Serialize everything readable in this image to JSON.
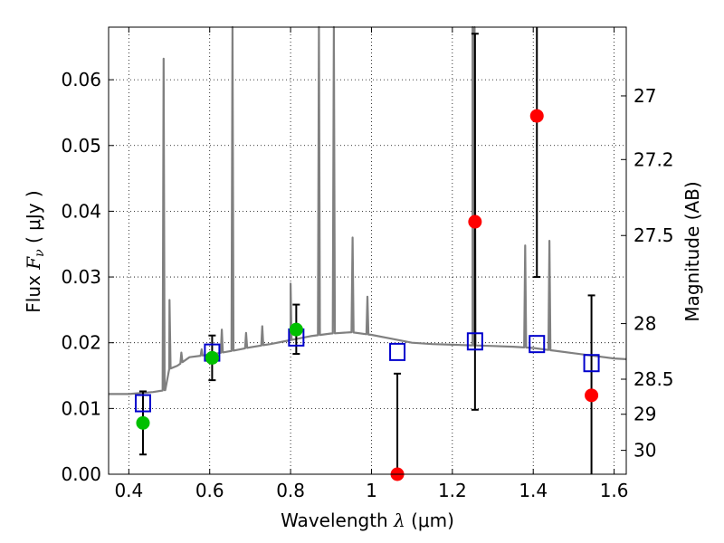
{
  "chart_data": {
    "type": "scatter",
    "title": "",
    "xlabel": {
      "prefix": "Wavelength  ",
      "symbol": "λ",
      "unit": " (μm)"
    },
    "ylabel": {
      "prefix": "Flux  ",
      "symbol": "F",
      "subscript": "ν",
      "unit": "  ( μJy )"
    },
    "y2label": "Magnitude (AB)",
    "xlim": [
      0.35,
      1.63
    ],
    "ylim": [
      0.0,
      0.068
    ],
    "grid": true,
    "grid_style": "dotted",
    "x_ticks": [
      0.4,
      0.6,
      0.8,
      1.0,
      1.2,
      1.4,
      1.6
    ],
    "x_tick_labels": [
      "0.4",
      "0.6",
      "0.8",
      "1",
      "1.2",
      "1.4",
      "1.6"
    ],
    "y_ticks": [
      0.0,
      0.01,
      0.02,
      0.03,
      0.04,
      0.05,
      0.06
    ],
    "y_tick_labels": [
      "0.00",
      "0.01",
      "0.02",
      "0.03",
      "0.04",
      "0.05",
      "0.06"
    ],
    "y2_ticks": [
      {
        "mag": 27.0,
        "label": "27"
      },
      {
        "mag": 27.2,
        "label": "27.2"
      },
      {
        "mag": 27.5,
        "label": "27.5"
      },
      {
        "mag": 28.0,
        "label": "28"
      },
      {
        "mag": 28.5,
        "label": "28.5"
      },
      {
        "mag": 29.0,
        "label": "29"
      },
      {
        "mag": 30.0,
        "label": "30"
      }
    ],
    "colors": {
      "spectrum": "#808080",
      "model_squares": "#0000cc",
      "detections": "#00c000",
      "nir_points": "#ff0000",
      "errorbars": "#000000"
    },
    "spectrum": {
      "continuum": [
        [
          0.35,
          0.0122
        ],
        [
          0.4,
          0.0122
        ],
        [
          0.46,
          0.0125
        ],
        [
          0.49,
          0.0128
        ],
        [
          0.5,
          0.016
        ],
        [
          0.52,
          0.0165
        ],
        [
          0.55,
          0.0178
        ],
        [
          0.6,
          0.0182
        ],
        [
          0.65,
          0.0187
        ],
        [
          0.7,
          0.0193
        ],
        [
          0.75,
          0.0198
        ],
        [
          0.8,
          0.0204
        ],
        [
          0.85,
          0.021
        ],
        [
          0.9,
          0.0214
        ],
        [
          0.95,
          0.0216
        ],
        [
          1.0,
          0.0212
        ],
        [
          1.05,
          0.0206
        ],
        [
          1.1,
          0.02
        ],
        [
          1.15,
          0.0198
        ],
        [
          1.2,
          0.0197
        ],
        [
          1.25,
          0.0196
        ],
        [
          1.3,
          0.0195
        ],
        [
          1.35,
          0.0194
        ],
        [
          1.4,
          0.0192
        ],
        [
          1.45,
          0.0188
        ],
        [
          1.5,
          0.0184
        ],
        [
          1.55,
          0.018
        ],
        [
          1.6,
          0.0176
        ],
        [
          1.63,
          0.0175
        ]
      ],
      "lines": [
        [
          0.4861,
          0.0632
        ],
        [
          0.5007,
          0.0265
        ],
        [
          0.53,
          0.0185
        ],
        [
          0.58,
          0.019
        ],
        [
          0.63,
          0.022
        ],
        [
          0.6563,
          0.072
        ],
        [
          0.69,
          0.0215
        ],
        [
          0.73,
          0.0225
        ],
        [
          0.8,
          0.029
        ],
        [
          0.87,
          0.072
        ],
        [
          0.9069,
          0.072
        ],
        [
          0.9532,
          0.036
        ],
        [
          0.99,
          0.027
        ],
        [
          1.25,
          0.072
        ],
        [
          1.255,
          0.072
        ],
        [
          1.38,
          0.0348
        ],
        [
          1.44,
          0.0355
        ]
      ]
    },
    "model_squares": [
      {
        "x": 0.435,
        "y": 0.0108
      },
      {
        "x": 0.606,
        "y": 0.0185
      },
      {
        "x": 0.814,
        "y": 0.0208
      },
      {
        "x": 1.064,
        "y": 0.0186
      },
      {
        "x": 1.256,
        "y": 0.0202
      },
      {
        "x": 1.409,
        "y": 0.0198
      },
      {
        "x": 1.544,
        "y": 0.0169
      }
    ],
    "detections": [
      {
        "x": 0.435,
        "y": 0.0078,
        "err_low": 0.003,
        "err_high": 0.0126
      },
      {
        "x": 0.606,
        "y": 0.0177,
        "err_low": 0.0143,
        "err_high": 0.0211
      },
      {
        "x": 0.814,
        "y": 0.022,
        "err_low": 0.0183,
        "err_high": 0.0258
      }
    ],
    "nir_points": [
      {
        "x": 1.064,
        "y": 0.0,
        "err_low": 0.0,
        "err_high": 0.0153
      },
      {
        "x": 1.256,
        "y": 0.0384,
        "err_low": 0.0098,
        "err_high": 0.067
      },
      {
        "x": 1.409,
        "y": 0.0545,
        "err_low": 0.03,
        "err_high": 0.068
      },
      {
        "x": 1.544,
        "y": 0.012,
        "err_low": 0.0,
        "err_high": 0.0272
      }
    ]
  }
}
